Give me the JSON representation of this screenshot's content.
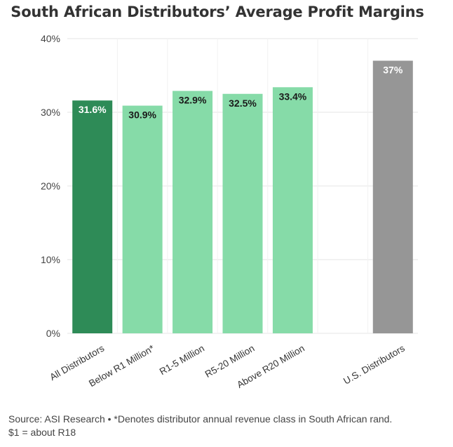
{
  "chart_data": {
    "type": "bar",
    "title": "South African Distributors’ Average Profit Margins",
    "categories": [
      "All Distributors",
      "Below R1 Million*",
      "R1-5 Million",
      "R5-20 Million",
      "Above R20 Million",
      "U.S. Distributors"
    ],
    "values": [
      31.6,
      30.9,
      32.9,
      32.5,
      33.4,
      37
    ],
    "value_labels": [
      "31.6%",
      "30.9%",
      "32.9%",
      "32.5%",
      "33.4%",
      "37%"
    ],
    "ylim": [
      0,
      40
    ],
    "yticks": [
      0,
      10,
      20,
      30,
      40
    ],
    "ytick_labels": [
      "0%",
      "10%",
      "20%",
      "30%",
      "40%"
    ],
    "xlabel": "",
    "ylabel": "",
    "grid": true,
    "colors": {
      "all": "#2e8b57",
      "segment": "#86dba8",
      "us": "#969696",
      "grid": "#e6e6e6",
      "label_dark": "#1a1a1a",
      "label_light": "#ffffff"
    }
  },
  "footnote": {
    "line1": "Source: ASI Research • *Denotes distributor annual revenue class in South African rand.",
    "line2": "$1 = about R18"
  }
}
